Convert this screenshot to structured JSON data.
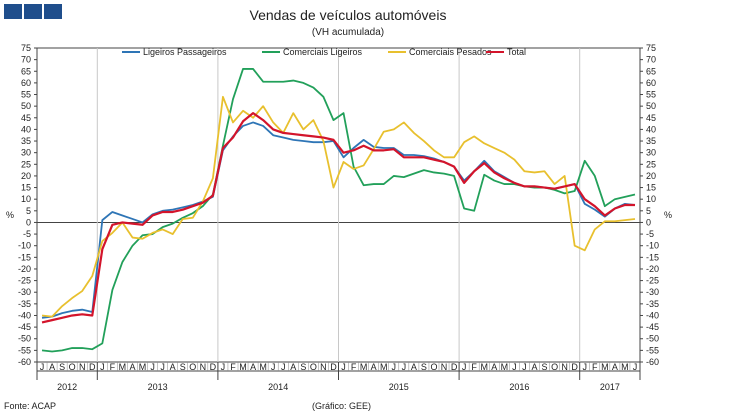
{
  "header_logo": {
    "blocks": 3,
    "color": "#1f4e8c"
  },
  "footer": {
    "source": "Fonte: ACAP",
    "credit": "(Gráfico: GEE)"
  },
  "chart_data": {
    "type": "line",
    "title": "Vendas de veículos automóveis",
    "subtitle": "(VH acumulada)",
    "ylabel_left": "%",
    "ylabel_right": "%",
    "ylim": [
      -60,
      75
    ],
    "ytick_step": 5,
    "grid": "vertical-year-separators",
    "legend_position": "top",
    "month_labels": [
      "J",
      "A",
      "S",
      "O",
      "N",
      "D",
      "J",
      "F",
      "M",
      "A",
      "M",
      "J",
      "J",
      "A",
      "S",
      "O",
      "N",
      "D",
      "J",
      "F",
      "M",
      "A",
      "M",
      "J",
      "J",
      "A",
      "S",
      "O",
      "N",
      "D",
      "J",
      "F",
      "M",
      "A",
      "M",
      "J",
      "J",
      "A",
      "S",
      "O",
      "N",
      "D",
      "J",
      "F",
      "M",
      "A",
      "M",
      "J",
      "J",
      "A",
      "S",
      "O",
      "N",
      "D",
      "J",
      "F",
      "M",
      "A",
      "M",
      "J"
    ],
    "years": [
      {
        "label": "2012",
        "start": 0,
        "end": 5
      },
      {
        "label": "2013",
        "start": 6,
        "end": 17
      },
      {
        "label": "2014",
        "start": 18,
        "end": 29
      },
      {
        "label": "2015",
        "start": 30,
        "end": 41
      },
      {
        "label": "2016",
        "start": 42,
        "end": 53
      },
      {
        "label": "2017",
        "start": 54,
        "end": 59
      }
    ],
    "series": [
      {
        "name": "Ligeiros Passageiros",
        "color": "#2e75b6",
        "values": [
          -41,
          -40.5,
          -39,
          -38,
          -37.5,
          -38.5,
          1,
          4.5,
          3,
          1.5,
          0,
          3.5,
          5,
          5.5,
          6.5,
          7.5,
          9,
          11,
          31,
          37,
          41.5,
          43,
          41.5,
          37.5,
          36.5,
          35.5,
          35,
          34.5,
          34.5,
          35,
          28,
          32,
          35.5,
          32.5,
          32,
          32,
          29,
          29,
          28.5,
          27.5,
          26,
          24,
          18,
          22,
          26.5,
          22,
          19.5,
          17,
          15.5,
          15.5,
          15,
          14.5,
          15.5,
          16.5,
          8,
          5.5,
          2.5,
          6,
          8,
          7.5
        ]
      },
      {
        "name": "Comerciais Ligeiros",
        "color": "#22a05a",
        "values": [
          -55,
          -55.5,
          -55,
          -54,
          -54,
          -54.5,
          -52,
          -29,
          -17,
          -10,
          -5.5,
          -5,
          -2,
          -0.5,
          2,
          4,
          7,
          12,
          33,
          53,
          66,
          66,
          60.5,
          60.5,
          60.5,
          61,
          60,
          58,
          54,
          44,
          47,
          24,
          16,
          16.5,
          16.5,
          20,
          19.5,
          21,
          22.5,
          21.5,
          21,
          20,
          6,
          5,
          20.5,
          18,
          16.5,
          16.5,
          15.5,
          15,
          15,
          14,
          12.5,
          13.5,
          26.5,
          20,
          7,
          10,
          11,
          12
        ]
      },
      {
        "name": "Comerciais Pesados",
        "color": "#e8c02e",
        "values": [
          -40,
          -40.5,
          -36,
          -32.5,
          -29.5,
          -23,
          -8,
          -4.5,
          0,
          -6.5,
          -7,
          -4.5,
          -3,
          -5,
          1.5,
          2,
          9,
          19,
          54,
          43,
          48,
          45,
          50,
          43,
          38.5,
          47,
          40,
          44,
          35,
          15,
          26,
          23,
          24.5,
          31.5,
          39,
          40,
          43,
          38.5,
          35,
          31,
          28,
          28,
          34.5,
          37,
          34,
          32,
          30,
          27,
          22,
          21.5,
          22,
          16.5,
          20,
          -10,
          -12,
          -3,
          0.5,
          0.5,
          1,
          1.5
        ]
      },
      {
        "name": "Total",
        "color": "#d3142b",
        "values": [
          -43,
          -42,
          -41,
          -40,
          -39.5,
          -40,
          -11.5,
          -1,
          0,
          -0.5,
          -1,
          3,
          4.5,
          4.5,
          5.5,
          7,
          8.5,
          11.5,
          32,
          36.5,
          43.5,
          47,
          44,
          40,
          38.5,
          38,
          37.5,
          37,
          36.5,
          35.5,
          30,
          31,
          33,
          31,
          31,
          31.5,
          28,
          28,
          28,
          27,
          26,
          24,
          17,
          22,
          25.5,
          21.5,
          19,
          17,
          15.5,
          15.5,
          15,
          14.5,
          15.5,
          16.5,
          10,
          7,
          3,
          6,
          7.5,
          7.5
        ]
      }
    ]
  }
}
